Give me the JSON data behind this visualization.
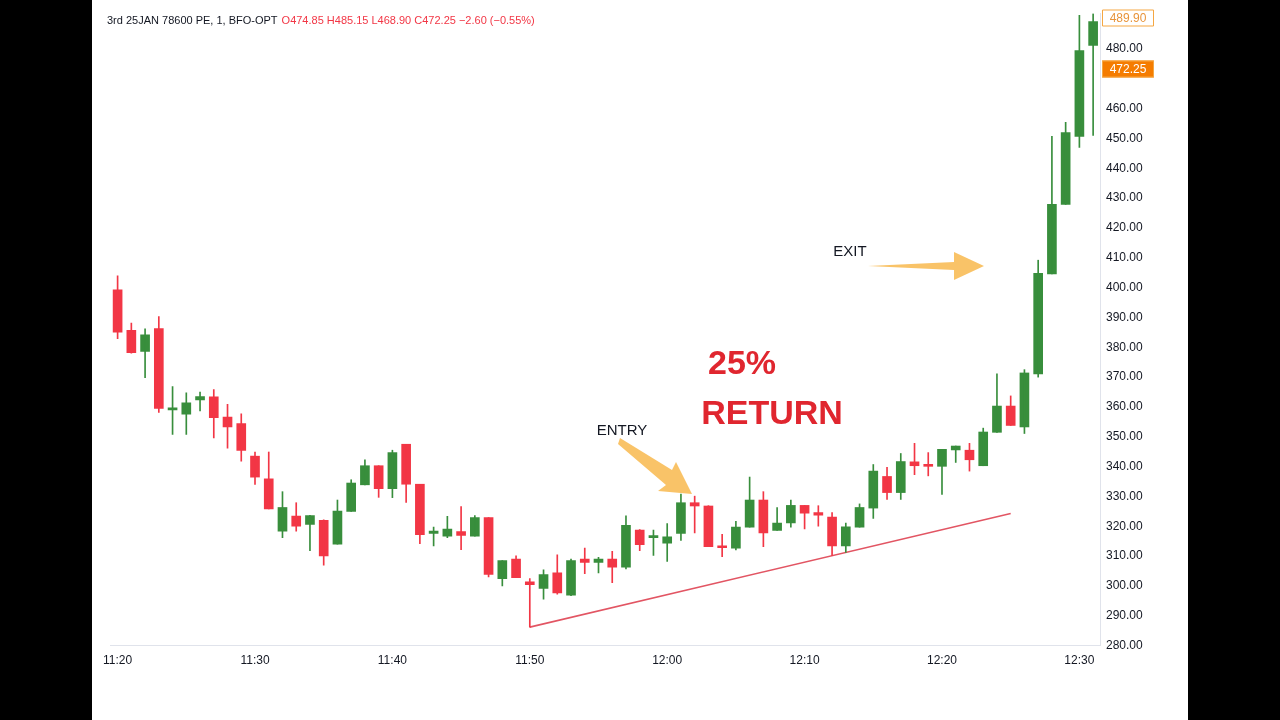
{
  "chart_data": {
    "type": "candlestick",
    "title": "3rd 25JAN 78600 PE, 1, BFO-OPT",
    "subtitle": "O474.85 H485.15 L468.90 C472.25 −2.60 (−0.55%)",
    "categories": [
      "11:20",
      null,
      null,
      null,
      null,
      null,
      null,
      null,
      null,
      null,
      "11:30",
      null,
      null,
      null,
      null,
      null,
      null,
      null,
      null,
      null,
      "11:40",
      null,
      null,
      null,
      null,
      null,
      null,
      null,
      null,
      null,
      "11:50",
      null,
      null,
      null,
      null,
      null,
      null,
      null,
      null,
      null,
      "12:00",
      null,
      null,
      null,
      null,
      null,
      null,
      null,
      null,
      null,
      "12:10",
      null,
      null,
      null,
      null,
      null,
      null,
      null,
      null,
      null,
      "12:20",
      null,
      null,
      null,
      null,
      null,
      null,
      null,
      null,
      null,
      "12:30",
      null
    ],
    "ohlc": [
      [
        399.3,
        404.0,
        382.9,
        385.1
      ],
      [
        385.7,
        388.1,
        378.0,
        378.2
      ],
      [
        378.6,
        386.2,
        369.8,
        384.2
      ],
      [
        386.3,
        390.3,
        358.2,
        359.5
      ],
      [
        359.0,
        366.8,
        350.8,
        359.2
      ],
      [
        357.6,
        364.7,
        350.8,
        361.4
      ],
      [
        362.4,
        365.0,
        358.7,
        363.5
      ],
      [
        363.4,
        365.8,
        349.6,
        356.4
      ],
      [
        356.6,
        360.9,
        346.2,
        353.3
      ],
      [
        354.4,
        357.7,
        341.8,
        345.4
      ],
      [
        343.5,
        344.9,
        334.0,
        336.5
      ],
      [
        335.9,
        344.9,
        325.8,
        325.8
      ],
      [
        318.4,
        331.6,
        316.2,
        326.3
      ],
      [
        323.4,
        327.9,
        318.4,
        320.0
      ],
      [
        320.6,
        323.7,
        311.8,
        323.6
      ],
      [
        322.0,
        322.2,
        307.0,
        310.1
      ],
      [
        314.0,
        328.8,
        314.0,
        325.1
      ],
      [
        325.0,
        335.6,
        325.0,
        334.5
      ],
      [
        333.9,
        342.3,
        333.9,
        340.3
      ],
      [
        340.3,
        340.3,
        329.7,
        332.6
      ],
      [
        332.6,
        345.5,
        329.6,
        344.7
      ],
      [
        347.5,
        347.5,
        328.0,
        334.1
      ],
      [
        334.1,
        334.1,
        314.2,
        317.2
      ],
      [
        317.6,
        319.7,
        313.4,
        318.4
      ],
      [
        316.7,
        323.3,
        316.2,
        319.1
      ],
      [
        318.2,
        326.6,
        312.2,
        316.9
      ],
      [
        316.7,
        323.6,
        316.7,
        322.9
      ],
      [
        322.9,
        322.9,
        303.0,
        303.9
      ],
      [
        302.4,
        308.5,
        300.0,
        308.5
      ],
      [
        309.0,
        310.1,
        302.8,
        302.8
      ],
      [
        301.4,
        302.5,
        286.2,
        300.4
      ],
      [
        299.2,
        305.4,
        295.6,
        303.8
      ],
      [
        304.4,
        310.4,
        297.2,
        297.7
      ],
      [
        296.9,
        309.0,
        296.7,
        308.5
      ],
      [
        309.0,
        312.7,
        304.1,
        307.9
      ],
      [
        307.9,
        309.6,
        304.4,
        309.0
      ],
      [
        309.0,
        311.6,
        301.1,
        306.3
      ],
      [
        306.3,
        323.5,
        305.7,
        320.3
      ],
      [
        318.7,
        318.9,
        311.8,
        313.8
      ],
      [
        316.2,
        318.7,
        310.2,
        316.5
      ],
      [
        314.3,
        320.9,
        308.2,
        316.5
      ],
      [
        317.6,
        330.8,
        315.3,
        327.9
      ],
      [
        327.9,
        330.1,
        317.8,
        326.8
      ],
      [
        326.8,
        326.9,
        313.2,
        313.2
      ],
      [
        313.3,
        317.3,
        309.8,
        312.8
      ],
      [
        312.7,
        321.7,
        312.1,
        319.7
      ],
      [
        319.7,
        336.5,
        319.7,
        328.8
      ],
      [
        328.8,
        331.6,
        313.2,
        317.8
      ],
      [
        318.6,
        326.3,
        318.6,
        321.1
      ],
      [
        321.1,
        328.8,
        319.7,
        327.0
      ],
      [
        327.0,
        327.0,
        319.1,
        324.4
      ],
      [
        324.6,
        326.9,
        320.0,
        323.7
      ],
      [
        323.1,
        324.6,
        310.2,
        313.4
      ],
      [
        313.4,
        321.1,
        311.2,
        319.8
      ],
      [
        319.7,
        327.5,
        319.7,
        326.3
      ],
      [
        326.1,
        340.7,
        322.6,
        338.5
      ],
      [
        336.7,
        339.8,
        329.0,
        331.3
      ],
      [
        331.3,
        344.4,
        329.0,
        341.7
      ],
      [
        341.6,
        347.8,
        337.3,
        340.3
      ],
      [
        340.6,
        344.7,
        336.9,
        340.1
      ],
      [
        340.1,
        345.8,
        330.7,
        345.8
      ],
      [
        345.6,
        346.9,
        341.4,
        346.9
      ],
      [
        345.5,
        347.8,
        338.5,
        342.3
      ],
      [
        340.3,
        352.9,
        340.3,
        351.6
      ],
      [
        351.5,
        371.1,
        351.5,
        360.3
      ],
      [
        360.3,
        363.7,
        353.8,
        353.8
      ],
      [
        353.3,
        372.5,
        351.1,
        371.4
      ],
      [
        371.1,
        409.2,
        370.0,
        404.8
      ],
      [
        404.6,
        450.7,
        404.6,
        427.9
      ],
      [
        427.9,
        455.4,
        427.9,
        452.0
      ],
      [
        450.7,
        491.3,
        447.0,
        479.5
      ],
      [
        481.2,
        491.8,
        451.0,
        489.2
      ]
    ],
    "colors": [
      "#f23645",
      "#f23645",
      "#388e3c",
      "#f23645",
      "#388e3c",
      "#388e3c",
      "#388e3c",
      "#f23645",
      "#f23645",
      "#f23645",
      "#f23645",
      "#f23645",
      "#388e3c",
      "#f23645",
      "#388e3c",
      "#f23645",
      "#388e3c",
      "#388e3c",
      "#388e3c",
      "#f23645",
      "#388e3c",
      "#f23645",
      "#f23645",
      "#388e3c",
      "#388e3c",
      "#f23645",
      "#388e3c",
      "#f23645",
      "#388e3c",
      "#f23645",
      "#f23645",
      "#388e3c",
      "#f23645",
      "#388e3c",
      "#f23645",
      "#388e3c",
      "#f23645",
      "#388e3c",
      "#f23645",
      "#388e3c",
      "#388e3c",
      "#388e3c",
      "#f23645",
      "#f23645",
      "#f23645",
      "#388e3c",
      "#388e3c",
      "#f23645",
      "#388e3c",
      "#388e3c",
      "#f23645",
      "#f23645",
      "#f23645",
      "#388e3c",
      "#388e3c",
      "#388e3c",
      "#f23645",
      "#388e3c",
      "#f23645",
      "#f23645",
      "#388e3c",
      "#388e3c",
      "#f23645",
      "#388e3c",
      "#388e3c",
      "#f23645",
      "#388e3c",
      "#388e3c",
      "#388e3c",
      "#388e3c",
      "#388e3c",
      "#388e3c"
    ],
    "series": [
      {
        "type": "line",
        "color": "#e25563",
        "values": [
          null,
          null,
          null,
          null,
          null,
          null,
          null,
          null,
          null,
          null,
          null,
          null,
          null,
          null,
          null,
          null,
          null,
          null,
          null,
          null,
          null,
          null,
          null,
          null,
          null,
          null,
          null,
          null,
          null,
          null,
          286.2,
          null,
          null,
          null,
          null,
          null,
          null,
          null,
          null,
          null,
          null,
          null,
          null,
          null,
          null,
          null,
          null,
          null,
          null,
          null,
          null,
          null,
          null,
          null,
          null,
          null,
          null,
          null,
          null,
          null,
          null,
          null,
          null,
          null,
          null,
          324.3,
          null,
          null,
          null,
          null,
          null,
          null
        ]
      }
    ],
    "ylim": [
      280,
      492
    ],
    "yticks": [
      {
        "value": 280,
        "label": "280.00"
      },
      {
        "value": 290,
        "label": "290.00"
      },
      {
        "value": 300,
        "label": "300.00"
      },
      {
        "value": 310,
        "label": "310.00"
      },
      {
        "value": 320,
        "label": "320.00"
      },
      {
        "value": 330,
        "label": "330.00"
      },
      {
        "value": 340,
        "label": "340.00"
      },
      {
        "value": 350,
        "label": "350.00"
      },
      {
        "value": 360,
        "label": "360.00"
      },
      {
        "value": 370,
        "label": "370.00"
      },
      {
        "value": 380,
        "label": "380.00"
      },
      {
        "value": 390,
        "label": "390.00"
      },
      {
        "value": 400,
        "label": "400.00"
      },
      {
        "value": 410,
        "label": "410.00"
      },
      {
        "value": 420,
        "label": "420.00"
      },
      {
        "value": 430,
        "label": "430.00"
      },
      {
        "value": 440,
        "label": "440.00"
      },
      {
        "value": 450,
        "label": "450.00"
      },
      {
        "value": 460,
        "label": "460.00"
      },
      {
        "value": 480,
        "label": "480.00"
      }
    ],
    "grid": false,
    "legend": false,
    "annotations": [
      "ENTRY",
      "EXIT",
      "25%",
      "RETURN",
      "489.90",
      "472.25"
    ]
  }
}
